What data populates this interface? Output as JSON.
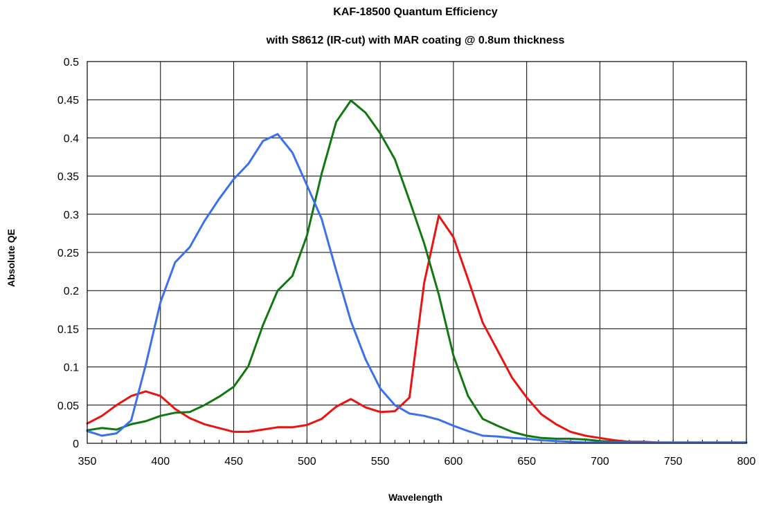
{
  "chart_data": {
    "type": "line",
    "title": "KAF-18500 Quantum Efficiency",
    "subtitle": "with S8612 (IR-cut) with MAR coating @ 0.8um thickness",
    "xlabel": "Wavelength",
    "ylabel": "Absolute QE",
    "xlim": [
      350,
      800
    ],
    "ylim": [
      0,
      0.5
    ],
    "xticks": [
      "350",
      "400",
      "450",
      "500",
      "550",
      "600",
      "650",
      "700",
      "750",
      "800"
    ],
    "yticks": [
      "0",
      "0.05",
      "0.1",
      "0.15",
      "0.2",
      "0.25",
      "0.3",
      "0.35",
      "0.4",
      "0.45",
      "0.5"
    ],
    "grid": true,
    "legend": "none",
    "series": [
      {
        "color": "#ee1111",
        "points": [
          [
            350,
            0.026
          ],
          [
            360,
            0.036
          ],
          [
            370,
            0.05
          ],
          [
            380,
            0.062
          ],
          [
            390,
            0.068
          ],
          [
            400,
            0.062
          ],
          [
            410,
            0.045
          ],
          [
            420,
            0.033
          ],
          [
            430,
            0.025
          ],
          [
            440,
            0.02
          ],
          [
            450,
            0.015
          ],
          [
            460,
            0.015
          ],
          [
            470,
            0.018
          ],
          [
            480,
            0.021
          ],
          [
            490,
            0.021
          ],
          [
            500,
            0.024
          ],
          [
            510,
            0.032
          ],
          [
            520,
            0.048
          ],
          [
            530,
            0.058
          ],
          [
            540,
            0.047
          ],
          [
            550,
            0.041
          ],
          [
            560,
            0.042
          ],
          [
            570,
            0.06
          ],
          [
            580,
            0.21
          ],
          [
            590,
            0.298
          ],
          [
            600,
            0.27
          ],
          [
            610,
            0.215
          ],
          [
            620,
            0.158
          ],
          [
            630,
            0.122
          ],
          [
            640,
            0.086
          ],
          [
            650,
            0.06
          ],
          [
            660,
            0.038
          ],
          [
            670,
            0.025
          ],
          [
            680,
            0.015
          ],
          [
            690,
            0.01
          ],
          [
            700,
            0.007
          ],
          [
            710,
            0.004
          ],
          [
            720,
            0.002
          ],
          [
            730,
            0.002
          ],
          [
            740,
            0.001
          ],
          [
            750,
            0.001
          ],
          [
            800,
            0.001
          ]
        ]
      },
      {
        "color": "#117711",
        "points": [
          [
            350,
            0.017
          ],
          [
            360,
            0.02
          ],
          [
            370,
            0.018
          ],
          [
            380,
            0.025
          ],
          [
            390,
            0.029
          ],
          [
            400,
            0.036
          ],
          [
            410,
            0.04
          ],
          [
            420,
            0.041
          ],
          [
            430,
            0.05
          ],
          [
            440,
            0.061
          ],
          [
            450,
            0.074
          ],
          [
            460,
            0.101
          ],
          [
            470,
            0.155
          ],
          [
            480,
            0.2
          ],
          [
            490,
            0.219
          ],
          [
            500,
            0.272
          ],
          [
            510,
            0.353
          ],
          [
            520,
            0.421
          ],
          [
            530,
            0.449
          ],
          [
            540,
            0.433
          ],
          [
            550,
            0.406
          ],
          [
            560,
            0.372
          ],
          [
            570,
            0.318
          ],
          [
            580,
            0.262
          ],
          [
            590,
            0.195
          ],
          [
            600,
            0.115
          ],
          [
            610,
            0.062
          ],
          [
            620,
            0.032
          ],
          [
            630,
            0.023
          ],
          [
            640,
            0.015
          ],
          [
            650,
            0.01
          ],
          [
            660,
            0.007
          ],
          [
            670,
            0.006
          ],
          [
            680,
            0.006
          ],
          [
            690,
            0.005
          ],
          [
            700,
            0.003
          ],
          [
            710,
            0.002
          ],
          [
            720,
            0.001
          ],
          [
            800,
            0.001
          ]
        ]
      },
      {
        "color": "#3a6ff0",
        "points": [
          [
            350,
            0.016
          ],
          [
            360,
            0.01
          ],
          [
            370,
            0.013
          ],
          [
            380,
            0.03
          ],
          [
            390,
            0.103
          ],
          [
            400,
            0.185
          ],
          [
            410,
            0.237
          ],
          [
            420,
            0.257
          ],
          [
            430,
            0.291
          ],
          [
            440,
            0.32
          ],
          [
            450,
            0.346
          ],
          [
            460,
            0.366
          ],
          [
            470,
            0.396
          ],
          [
            480,
            0.405
          ],
          [
            490,
            0.381
          ],
          [
            500,
            0.338
          ],
          [
            510,
            0.294
          ],
          [
            520,
            0.226
          ],
          [
            530,
            0.16
          ],
          [
            540,
            0.11
          ],
          [
            550,
            0.072
          ],
          [
            560,
            0.05
          ],
          [
            570,
            0.039
          ],
          [
            580,
            0.036
          ],
          [
            590,
            0.031
          ],
          [
            600,
            0.023
          ],
          [
            610,
            0.016
          ],
          [
            620,
            0.01
          ],
          [
            630,
            0.009
          ],
          [
            640,
            0.007
          ],
          [
            650,
            0.006
          ],
          [
            660,
            0.004
          ],
          [
            670,
            0.003
          ],
          [
            680,
            0.002
          ],
          [
            690,
            0.001
          ],
          [
            800,
            0.001
          ]
        ]
      }
    ]
  }
}
